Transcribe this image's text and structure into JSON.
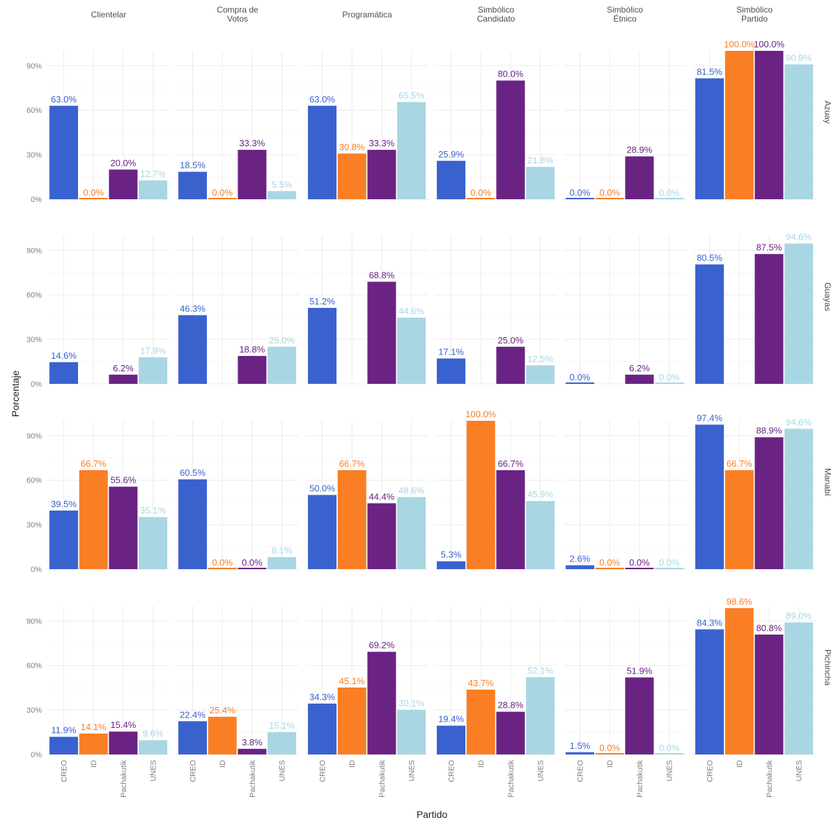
{
  "chart_data": {
    "type": "bar",
    "xlabel": "Partido",
    "ylabel": "Porcentaje",
    "ylim": [
      0,
      100
    ],
    "yticks": [
      "0%",
      "30%",
      "60%",
      "90%"
    ],
    "grid": true,
    "columns": [
      {
        "name": "Clientelar",
        "lines": [
          "Clientelar"
        ]
      },
      {
        "name": "Compra de Votos",
        "lines": [
          "Compra de",
          "Votos"
        ]
      },
      {
        "name": "Programática",
        "lines": [
          "Programática"
        ]
      },
      {
        "name": "Simbólico Candidato",
        "lines": [
          "Simbólico",
          "Candidato"
        ]
      },
      {
        "name": "Simbólico Étnico",
        "lines": [
          "Simbólico",
          "Étnico"
        ]
      },
      {
        "name": "Simbólico Partido",
        "lines": [
          "Simbólico",
          "Partido"
        ]
      }
    ],
    "rows": [
      "Azuay",
      "Guayas",
      "Manabí",
      "Pichincha"
    ],
    "categories": [
      "CREO",
      "ID",
      "Pachakutik",
      "UNES"
    ],
    "colors": {
      "CREO": "#3a62cf",
      "ID": "#fa7e23",
      "Pachakutik": "#6a2383",
      "UNES": "#a9d6e3"
    },
    "values": {
      "Azuay": [
        [
          63.0,
          0.0,
          20.0,
          12.7
        ],
        [
          18.5,
          0.0,
          33.3,
          5.5
        ],
        [
          63.0,
          30.8,
          33.3,
          65.5
        ],
        [
          25.9,
          0.0,
          80.0,
          21.8
        ],
        [
          0.0,
          0.0,
          28.9,
          0.0
        ],
        [
          81.5,
          100.0,
          100.0,
          90.9
        ]
      ],
      "Guayas": [
        [
          14.6,
          null,
          6.2,
          17.9
        ],
        [
          46.3,
          null,
          18.8,
          25.0
        ],
        [
          51.2,
          null,
          68.8,
          44.6
        ],
        [
          17.1,
          null,
          25.0,
          12.5
        ],
        [
          0.0,
          null,
          6.2,
          0.0
        ],
        [
          80.5,
          null,
          87.5,
          94.6
        ]
      ],
      "Manabí": [
        [
          39.5,
          66.7,
          55.6,
          35.1
        ],
        [
          60.5,
          0.0,
          0.0,
          8.1
        ],
        [
          50.0,
          66.7,
          44.4,
          48.6
        ],
        [
          5.3,
          100.0,
          66.7,
          45.9
        ],
        [
          2.6,
          0.0,
          0.0,
          0.0
        ],
        [
          97.4,
          66.7,
          88.9,
          94.6
        ]
      ],
      "Pichincha": [
        [
          11.9,
          14.1,
          15.4,
          9.6
        ],
        [
          22.4,
          25.4,
          3.8,
          15.1
        ],
        [
          34.3,
          45.1,
          69.2,
          30.1
        ],
        [
          19.4,
          43.7,
          28.8,
          52.1
        ],
        [
          1.5,
          0.0,
          51.9,
          0.0
        ],
        [
          84.3,
          98.6,
          80.8,
          89.0
        ]
      ]
    }
  }
}
